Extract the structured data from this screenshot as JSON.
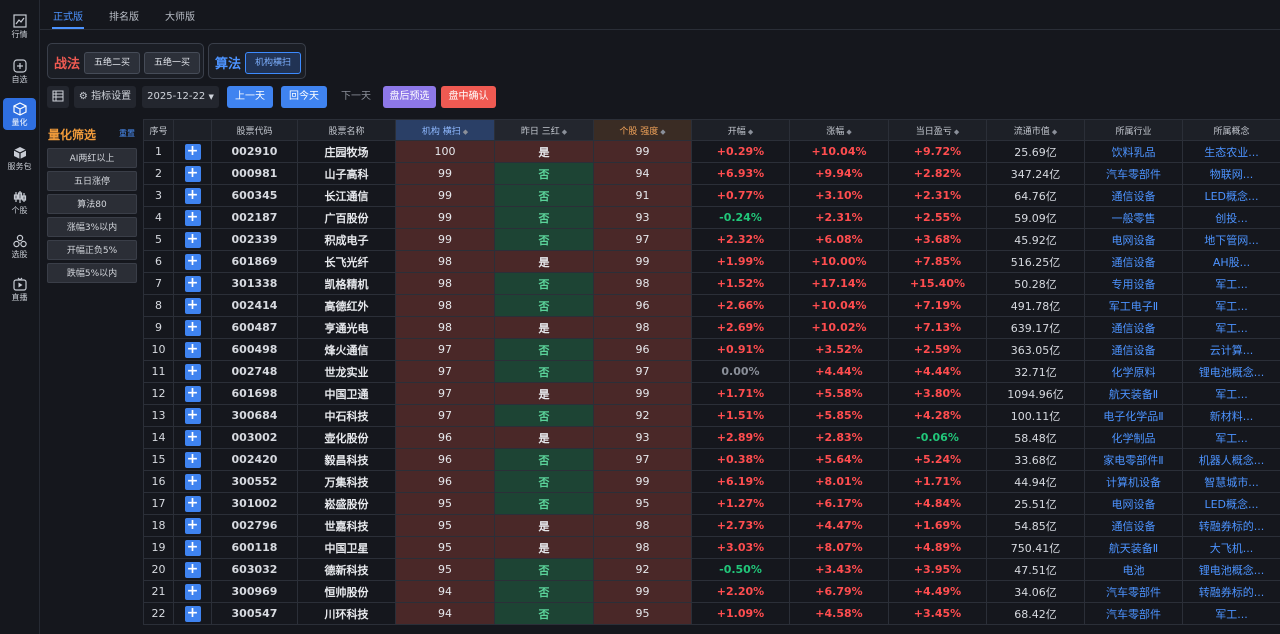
{
  "rail": [
    {
      "label": "行情",
      "icon": "chart-icon",
      "active": false
    },
    {
      "label": "自选",
      "icon": "plus-square-icon",
      "active": false
    },
    {
      "label": "量化",
      "icon": "cube-icon",
      "active": true
    },
    {
      "label": "服务包",
      "icon": "package-icon",
      "active": false
    },
    {
      "label": "个股",
      "icon": "stock-icon",
      "active": false
    },
    {
      "label": "选股",
      "icon": "nodes-icon",
      "active": false
    },
    {
      "label": "直播",
      "icon": "live-icon",
      "active": false
    }
  ],
  "tabs": [
    "正式版",
    "排名版",
    "大师版"
  ],
  "strategy": {
    "title": "战法",
    "buttons": [
      "五绝二买",
      "五绝一买"
    ]
  },
  "algorithm": {
    "title": "算法",
    "buttons": [
      "机构横扫"
    ]
  },
  "toolbar": {
    "settings": "指标设置",
    "date": "2025-12-22",
    "prev_day": "上一天",
    "today": "回今天",
    "next_day": "下一天",
    "after_close": "盘后预选",
    "intraday": "盘中确认"
  },
  "filter": {
    "title": "量化筛选",
    "reset": "重置",
    "items": [
      "AI两红以上",
      "五日涨停",
      "算法80",
      "涨幅3%以内",
      "开幅正负5%",
      "跌幅5%以内"
    ]
  },
  "table": {
    "headers": [
      "序号",
      "",
      "股票代码",
      "股票名称",
      "机构 横扫",
      "昨日 三红",
      "个股 强度",
      "开幅",
      "涨幅",
      "当日盈亏",
      "流通市值",
      "所属行业",
      "所属概念"
    ],
    "rows": [
      [
        "1",
        "002910",
        "庄园牧场",
        "100",
        "是",
        "99",
        "+0.29%",
        "+10.04%",
        "+9.72%",
        "25.69亿",
        "饮料乳品",
        "生态农业..."
      ],
      [
        "2",
        "000981",
        "山子高科",
        "99",
        "否",
        "94",
        "+6.93%",
        "+9.94%",
        "+2.82%",
        "347.24亿",
        "汽车零部件",
        "物联网..."
      ],
      [
        "3",
        "600345",
        "长江通信",
        "99",
        "否",
        "91",
        "+0.77%",
        "+3.10%",
        "+2.31%",
        "64.76亿",
        "通信设备",
        "LED概念..."
      ],
      [
        "4",
        "002187",
        "广百股份",
        "99",
        "否",
        "93",
        "-0.24%",
        "+2.31%",
        "+2.55%",
        "59.09亿",
        "一般零售",
        "创投..."
      ],
      [
        "5",
        "002339",
        "积成电子",
        "99",
        "否",
        "97",
        "+2.32%",
        "+6.08%",
        "+3.68%",
        "45.92亿",
        "电网设备",
        "地下管网..."
      ],
      [
        "6",
        "601869",
        "长飞光纤",
        "98",
        "是",
        "99",
        "+1.99%",
        "+10.00%",
        "+7.85%",
        "516.25亿",
        "通信设备",
        "AH股..."
      ],
      [
        "7",
        "301338",
        "凯格精机",
        "98",
        "否",
        "98",
        "+1.52%",
        "+17.14%",
        "+15.40%",
        "50.28亿",
        "专用设备",
        "军工..."
      ],
      [
        "8",
        "002414",
        "高德红外",
        "98",
        "否",
        "96",
        "+2.66%",
        "+10.04%",
        "+7.19%",
        "491.78亿",
        "军工电子Ⅱ",
        "军工..."
      ],
      [
        "9",
        "600487",
        "亨通光电",
        "98",
        "是",
        "98",
        "+2.69%",
        "+10.02%",
        "+7.13%",
        "639.17亿",
        "通信设备",
        "军工..."
      ],
      [
        "10",
        "600498",
        "烽火通信",
        "97",
        "否",
        "96",
        "+0.91%",
        "+3.52%",
        "+2.59%",
        "363.05亿",
        "通信设备",
        "云计算..."
      ],
      [
        "11",
        "002748",
        "世龙实业",
        "97",
        "否",
        "97",
        "0.00%",
        "+4.44%",
        "+4.44%",
        "32.71亿",
        "化学原料",
        "锂电池概念..."
      ],
      [
        "12",
        "601698",
        "中国卫通",
        "97",
        "是",
        "99",
        "+1.71%",
        "+5.58%",
        "+3.80%",
        "1094.96亿",
        "航天装备Ⅱ",
        "军工..."
      ],
      [
        "13",
        "300684",
        "中石科技",
        "97",
        "否",
        "92",
        "+1.51%",
        "+5.85%",
        "+4.28%",
        "100.11亿",
        "电子化学品Ⅱ",
        "新材料..."
      ],
      [
        "14",
        "003002",
        "壶化股份",
        "96",
        "是",
        "93",
        "+2.89%",
        "+2.83%",
        "-0.06%",
        "58.48亿",
        "化学制品",
        "军工..."
      ],
      [
        "15",
        "002420",
        "毅昌科技",
        "96",
        "否",
        "97",
        "+0.38%",
        "+5.64%",
        "+5.24%",
        "33.68亿",
        "家电零部件Ⅱ",
        "机器人概念..."
      ],
      [
        "16",
        "300552",
        "万集科技",
        "96",
        "否",
        "99",
        "+6.19%",
        "+8.01%",
        "+1.71%",
        "44.94亿",
        "计算机设备",
        "智慧城市..."
      ],
      [
        "17",
        "301002",
        "崧盛股份",
        "95",
        "否",
        "95",
        "+1.27%",
        "+6.17%",
        "+4.84%",
        "25.51亿",
        "电网设备",
        "LED概念..."
      ],
      [
        "18",
        "002796",
        "世嘉科技",
        "95",
        "是",
        "98",
        "+2.73%",
        "+4.47%",
        "+1.69%",
        "54.85亿",
        "通信设备",
        "转融券标的..."
      ],
      [
        "19",
        "600118",
        "中国卫星",
        "95",
        "是",
        "98",
        "+3.03%",
        "+8.07%",
        "+4.89%",
        "750.41亿",
        "航天装备Ⅱ",
        "大飞机..."
      ],
      [
        "20",
        "603032",
        "德新科技",
        "95",
        "否",
        "92",
        "-0.50%",
        "+3.43%",
        "+3.95%",
        "47.51亿",
        "电池",
        "锂电池概念..."
      ],
      [
        "21",
        "300969",
        "恒帅股份",
        "94",
        "否",
        "99",
        "+2.20%",
        "+6.79%",
        "+4.49%",
        "34.06亿",
        "汽车零部件",
        "转融券标的..."
      ],
      [
        "22",
        "300547",
        "川环科技",
        "94",
        "否",
        "95",
        "+1.09%",
        "+4.58%",
        "+3.45%",
        "68.42亿",
        "汽车零部件",
        "军工..."
      ]
    ]
  }
}
